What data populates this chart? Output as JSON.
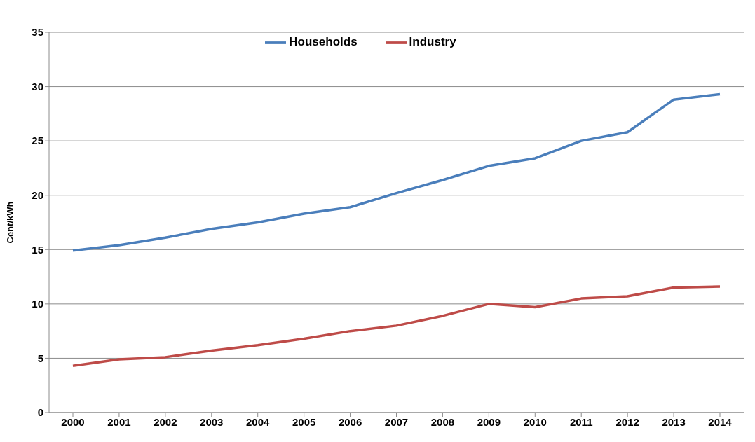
{
  "chart_data": {
    "type": "line",
    "ylabel": "Cent/kWh",
    "categories": [
      "2000",
      "2001",
      "2002",
      "2003",
      "2004",
      "2005",
      "2006",
      "2007",
      "2008",
      "2009",
      "2010",
      "2011",
      "2012",
      "2013",
      "2014"
    ],
    "series": [
      {
        "name": "Households",
        "color": "#4a7ebb",
        "values": [
          14.9,
          15.4,
          16.1,
          16.9,
          17.5,
          18.3,
          18.9,
          20.2,
          21.4,
          22.7,
          23.4,
          25.0,
          25.8,
          28.8,
          29.3
        ]
      },
      {
        "name": "Industry",
        "color": "#be4b48",
        "values": [
          4.3,
          4.9,
          5.1,
          5.7,
          6.2,
          6.8,
          7.5,
          8.0,
          8.9,
          10.0,
          9.7,
          10.5,
          10.7,
          11.5,
          11.6
        ]
      }
    ],
    "ylim": [
      0,
      35
    ],
    "yticks": [
      0,
      5,
      10,
      15,
      20,
      25,
      30,
      35
    ],
    "grid": "y",
    "legend": "top",
    "marker": "none",
    "line_style": "solid"
  }
}
